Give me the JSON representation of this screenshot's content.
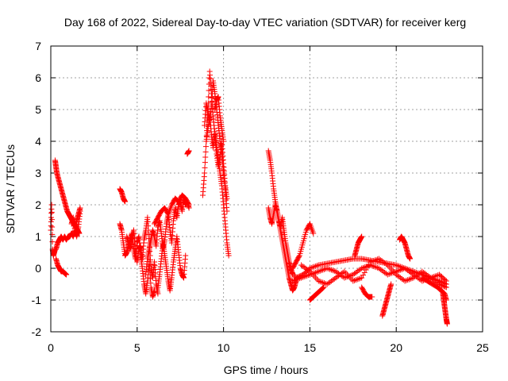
{
  "chart_data": {
    "type": "scatter",
    "title": "Day 168 of 2022, Sidereal Day-to-day VTEC variation (SDTVAR) for receiver kerg",
    "xlabel": "GPS time / hours",
    "ylabel": "SDTVAR / TECUs",
    "xlim": [
      0,
      25
    ],
    "ylim": [
      -2,
      7
    ],
    "xticks": [
      0,
      5,
      10,
      15,
      20,
      25
    ],
    "yticks": [
      -2,
      -1,
      0,
      1,
      2,
      3,
      4,
      5,
      6,
      7
    ],
    "grid": true,
    "marker": "+",
    "color": "#ff0000",
    "series": [
      {
        "name": "SDTVAR",
        "segments": [
          {
            "x": [
              0.0,
              0.05,
              0.1,
              0.15,
              0.2,
              0.25
            ],
            "y": [
              1.2,
              2.0,
              0.6,
              0.4,
              0.5,
              0.6
            ]
          },
          {
            "x": [
              0.25,
              0.3,
              0.35,
              0.45,
              0.55,
              0.65,
              0.75,
              0.85,
              0.95,
              1.05,
              1.15,
              1.25,
              1.35,
              1.45,
              1.55,
              1.65
            ],
            "y": [
              3.4,
              3.2,
              3.0,
              2.8,
              2.6,
              2.4,
              2.2,
              2.0,
              1.8,
              1.7,
              1.6,
              1.5,
              1.4,
              1.3,
              1.2,
              1.1
            ]
          },
          {
            "x": [
              0.3,
              0.4,
              0.5,
              0.6,
              0.7,
              0.8,
              0.9,
              1.0,
              1.1,
              1.2,
              1.3,
              1.4,
              1.5,
              1.6,
              1.7
            ],
            "y": [
              0.6,
              0.8,
              0.9,
              1.0,
              0.9,
              1.0,
              0.9,
              1.0,
              1.0,
              1.1,
              1.0,
              1.2,
              1.5,
              1.7,
              1.9
            ]
          },
          {
            "x": [
              0.3,
              0.4,
              0.5,
              0.6,
              0.7,
              0.8,
              0.9
            ],
            "y": [
              0.3,
              0.1,
              0.0,
              -0.1,
              -0.1,
              -0.15,
              -0.2
            ]
          },
          {
            "x": [
              1.2,
              1.3,
              1.4,
              1.5,
              1.6,
              1.7
            ],
            "y": [
              1.4,
              1.6,
              1.2,
              1.0,
              1.3,
              1.8
            ]
          },
          {
            "x": [
              4.0,
              4.1,
              4.2,
              4.3
            ],
            "y": [
              2.5,
              2.4,
              2.2,
              2.1
            ]
          },
          {
            "x": [
              4.0,
              4.1,
              4.2,
              4.3,
              4.4,
              4.5,
              4.6,
              4.7,
              4.8,
              4.9,
              5.0,
              5.1,
              5.2,
              5.3,
              5.4,
              5.5,
              5.6,
              5.7,
              5.8,
              5.9,
              6.0
            ],
            "y": [
              1.4,
              1.2,
              0.8,
              0.4,
              0.5,
              0.7,
              0.9,
              1.1,
              0.6,
              0.3,
              0.8,
              1.0,
              0.4,
              0.0,
              -0.5,
              -0.8,
              -0.4,
              0.2,
              -0.6,
              -0.9,
              -0.7
            ]
          },
          {
            "x": [
              4.4,
              4.5,
              4.6,
              4.7,
              4.8,
              4.9,
              5.0,
              5.1,
              5.2,
              5.3,
              5.4,
              5.5,
              5.6,
              5.7,
              5.8,
              5.9,
              6.0,
              6.1,
              6.2
            ],
            "y": [
              1.0,
              0.8,
              0.6,
              0.9,
              1.2,
              0.5,
              0.2,
              0.6,
              0.7,
              0.3,
              0.9,
              1.2,
              1.6,
              0.8,
              0.0,
              -0.3,
              0.2,
              -0.5,
              -0.8
            ]
          },
          {
            "x": [
              5.5,
              5.6,
              5.7,
              5.8,
              5.9,
              6.0,
              6.1,
              6.2,
              6.3,
              6.4,
              6.5,
              6.6,
              6.7,
              6.8,
              6.9,
              7.0,
              7.1,
              7.2,
              7.3,
              7.4,
              7.5,
              7.6,
              7.7,
              7.8,
              7.9,
              8.0
            ],
            "y": [
              -0.2,
              0.3,
              0.6,
              0.9,
              1.2,
              1.0,
              0.7,
              1.3,
              1.5,
              1.1,
              0.6,
              0.9,
              1.4,
              1.7,
              1.2,
              0.8,
              1.5,
              1.9,
              1.6,
              2.0,
              2.1,
              1.8,
              2.2,
              2.0,
              2.1,
              1.9
            ]
          },
          {
            "x": [
              6.2,
              6.3,
              6.4,
              6.5,
              6.6,
              6.7,
              6.8,
              6.9,
              7.0,
              7.1,
              7.2,
              7.3,
              7.4,
              7.5,
              7.6,
              7.7,
              7.8
            ],
            "y": [
              -0.6,
              -0.2,
              0.3,
              0.8,
              0.4,
              0.0,
              -0.4,
              -0.7,
              -0.3,
              0.2,
              0.6,
              1.0,
              0.5,
              0.0,
              -0.2,
              -0.3,
              0.4
            ]
          },
          {
            "x": [
              6.0,
              6.2,
              6.4,
              6.6,
              6.8,
              7.0,
              7.2,
              7.4,
              7.6,
              7.8,
              8.0
            ],
            "y": [
              1.4,
              1.6,
              1.8,
              1.9,
              1.7,
              2.0,
              2.2,
              2.1,
              2.3,
              2.2,
              2.0
            ]
          },
          {
            "x": [
              7.9,
              8.0
            ],
            "y": [
              3.6,
              3.7
            ]
          },
          {
            "x": [
              8.8,
              8.9,
              9.0,
              9.1,
              9.2,
              9.3,
              9.4,
              9.5,
              9.6,
              9.7,
              9.8,
              9.9,
              10.0,
              10.1,
              10.2
            ],
            "y": [
              2.3,
              3.0,
              4.0,
              5.0,
              6.2,
              5.5,
              4.8,
              4.2,
              3.6,
              3.2,
              3.5,
              4.0,
              3.3,
              2.6,
              2.2
            ]
          },
          {
            "x": [
              8.9,
              9.0,
              9.1,
              9.2,
              9.3,
              9.4,
              9.5,
              9.6,
              9.7,
              9.8,
              9.9,
              10.0,
              10.1,
              10.2
            ],
            "y": [
              4.5,
              5.2,
              4.9,
              4.6,
              5.1,
              5.9,
              5.5,
              5.0,
              4.5,
              4.0,
              3.6,
              3.0,
              2.5,
              1.8
            ]
          },
          {
            "x": [
              9.0,
              9.1,
              9.2,
              9.3,
              9.4,
              9.5,
              9.6,
              9.7,
              9.8,
              9.9,
              10.0,
              10.1,
              10.2,
              10.3
            ],
            "y": [
              4.0,
              4.4,
              4.8,
              4.2,
              3.8,
              4.3,
              3.9,
              3.4,
              3.0,
              2.6,
              2.0,
              1.4,
              0.8,
              0.4
            ]
          },
          {
            "x": [
              9.5,
              9.6,
              9.7,
              9.8,
              9.9,
              10.0
            ],
            "y": [
              5.0,
              5.3,
              5.4,
              4.8,
              4.4,
              4.0
            ]
          },
          {
            "x": [
              12.6,
              12.7,
              12.8,
              12.9,
              13.0,
              13.1,
              13.2,
              13.3,
              13.4,
              13.5,
              13.6,
              13.7,
              13.8,
              13.9,
              14.0,
              14.1,
              14.2
            ],
            "y": [
              3.7,
              3.4,
              3.0,
              2.5,
              2.1,
              1.8,
              1.5,
              1.2,
              0.9,
              0.6,
              0.3,
              0.0,
              -0.3,
              -0.5,
              -0.7,
              -0.6,
              -0.4
            ]
          },
          {
            "x": [
              12.6,
              12.7,
              12.8,
              12.9,
              13.0,
              13.1,
              13.2,
              13.3,
              13.4,
              13.5,
              13.6,
              13.7,
              13.8,
              13.9,
              14.0
            ],
            "y": [
              1.9,
              1.6,
              1.4,
              1.7,
              2.0,
              1.8,
              1.5,
              1.3,
              1.6,
              1.2,
              0.8,
              0.5,
              0.2,
              0.0,
              -0.2
            ]
          },
          {
            "x": [
              14.0,
              14.2,
              14.4,
              14.6,
              14.8,
              15.0,
              15.2
            ],
            "y": [
              0.0,
              0.2,
              0.4,
              0.8,
              1.2,
              1.4,
              1.1
            ]
          },
          {
            "x": [
              13.8,
              14.2,
              14.6,
              15.0,
              15.5,
              16.0,
              16.5,
              17.0,
              17.5,
              18.0,
              18.5,
              19.0,
              19.5,
              20.0,
              20.5,
              21.0,
              21.5,
              22.0,
              22.5,
              22.9
            ],
            "y": [
              0.0,
              -0.3,
              -0.2,
              0.0,
              0.1,
              0.15,
              0.2,
              0.25,
              0.3,
              0.3,
              0.25,
              0.2,
              0.15,
              0.1,
              0.0,
              -0.1,
              -0.2,
              -0.3,
              -0.4,
              -0.5
            ]
          },
          {
            "x": [
              14.0,
              14.5,
              15.0,
              15.5,
              16.0,
              16.5,
              17.0,
              17.5,
              18.0,
              18.5,
              19.0,
              19.5,
              20.0,
              20.5,
              21.0,
              21.5,
              22.0,
              22.5,
              22.9
            ],
            "y": [
              -0.4,
              -0.3,
              -0.2,
              -0.1,
              0.0,
              -0.1,
              -0.3,
              -0.2,
              0.0,
              0.1,
              0.0,
              -0.2,
              -0.1,
              0.0,
              -0.2,
              -0.4,
              -0.3,
              -0.5,
              -0.6
            ]
          },
          {
            "x": [
              14.5,
              15.0,
              15.5,
              16.0,
              16.5,
              17.0,
              17.5,
              18.0,
              18.5,
              19.0,
              19.5,
              20.0,
              20.5,
              21.0,
              21.5,
              22.0,
              22.5,
              22.9
            ],
            "y": [
              0.1,
              -0.1,
              -0.4,
              -0.5,
              -0.3,
              -0.1,
              -0.4,
              -0.3,
              0.2,
              0.3,
              0.1,
              -0.2,
              -0.4,
              -0.3,
              -0.1,
              -0.3,
              -0.2,
              -0.4
            ]
          },
          {
            "x": [
              15.0,
              15.2,
              15.4,
              15.6,
              15.8
            ],
            "y": [
              -1.0,
              -0.9,
              -0.8,
              -0.7,
              -0.6
            ]
          },
          {
            "x": [
              17.6,
              17.7,
              17.8,
              17.9,
              18.0
            ],
            "y": [
              0.4,
              0.6,
              0.8,
              0.9,
              1.0
            ]
          },
          {
            "x": [
              18.0,
              18.2,
              18.4,
              18.6
            ],
            "y": [
              -0.6,
              -0.8,
              -0.9,
              -0.9
            ]
          },
          {
            "x": [
              19.2,
              19.3,
              19.4,
              19.5,
              19.6,
              19.7
            ],
            "y": [
              -1.5,
              -1.3,
              -1.1,
              -0.9,
              -0.7,
              -0.5
            ]
          },
          {
            "x": [
              20.2,
              20.3,
              20.4,
              20.5,
              20.6,
              20.7,
              20.8
            ],
            "y": [
              0.9,
              1.0,
              0.9,
              0.8,
              0.6,
              0.4,
              0.3
            ]
          },
          {
            "x": [
              21.5,
              21.8,
              22.1,
              22.4,
              22.6,
              22.8,
              22.9
            ],
            "y": [
              -0.3,
              -0.4,
              -0.5,
              -0.6,
              -0.7,
              -0.8,
              -1.0
            ]
          },
          {
            "x": [
              22.7,
              22.75,
              22.8,
              22.85,
              22.9,
              22.95
            ],
            "y": [
              -0.8,
              -1.0,
              -1.2,
              -1.4,
              -1.6,
              -1.75
            ]
          }
        ]
      }
    ]
  }
}
